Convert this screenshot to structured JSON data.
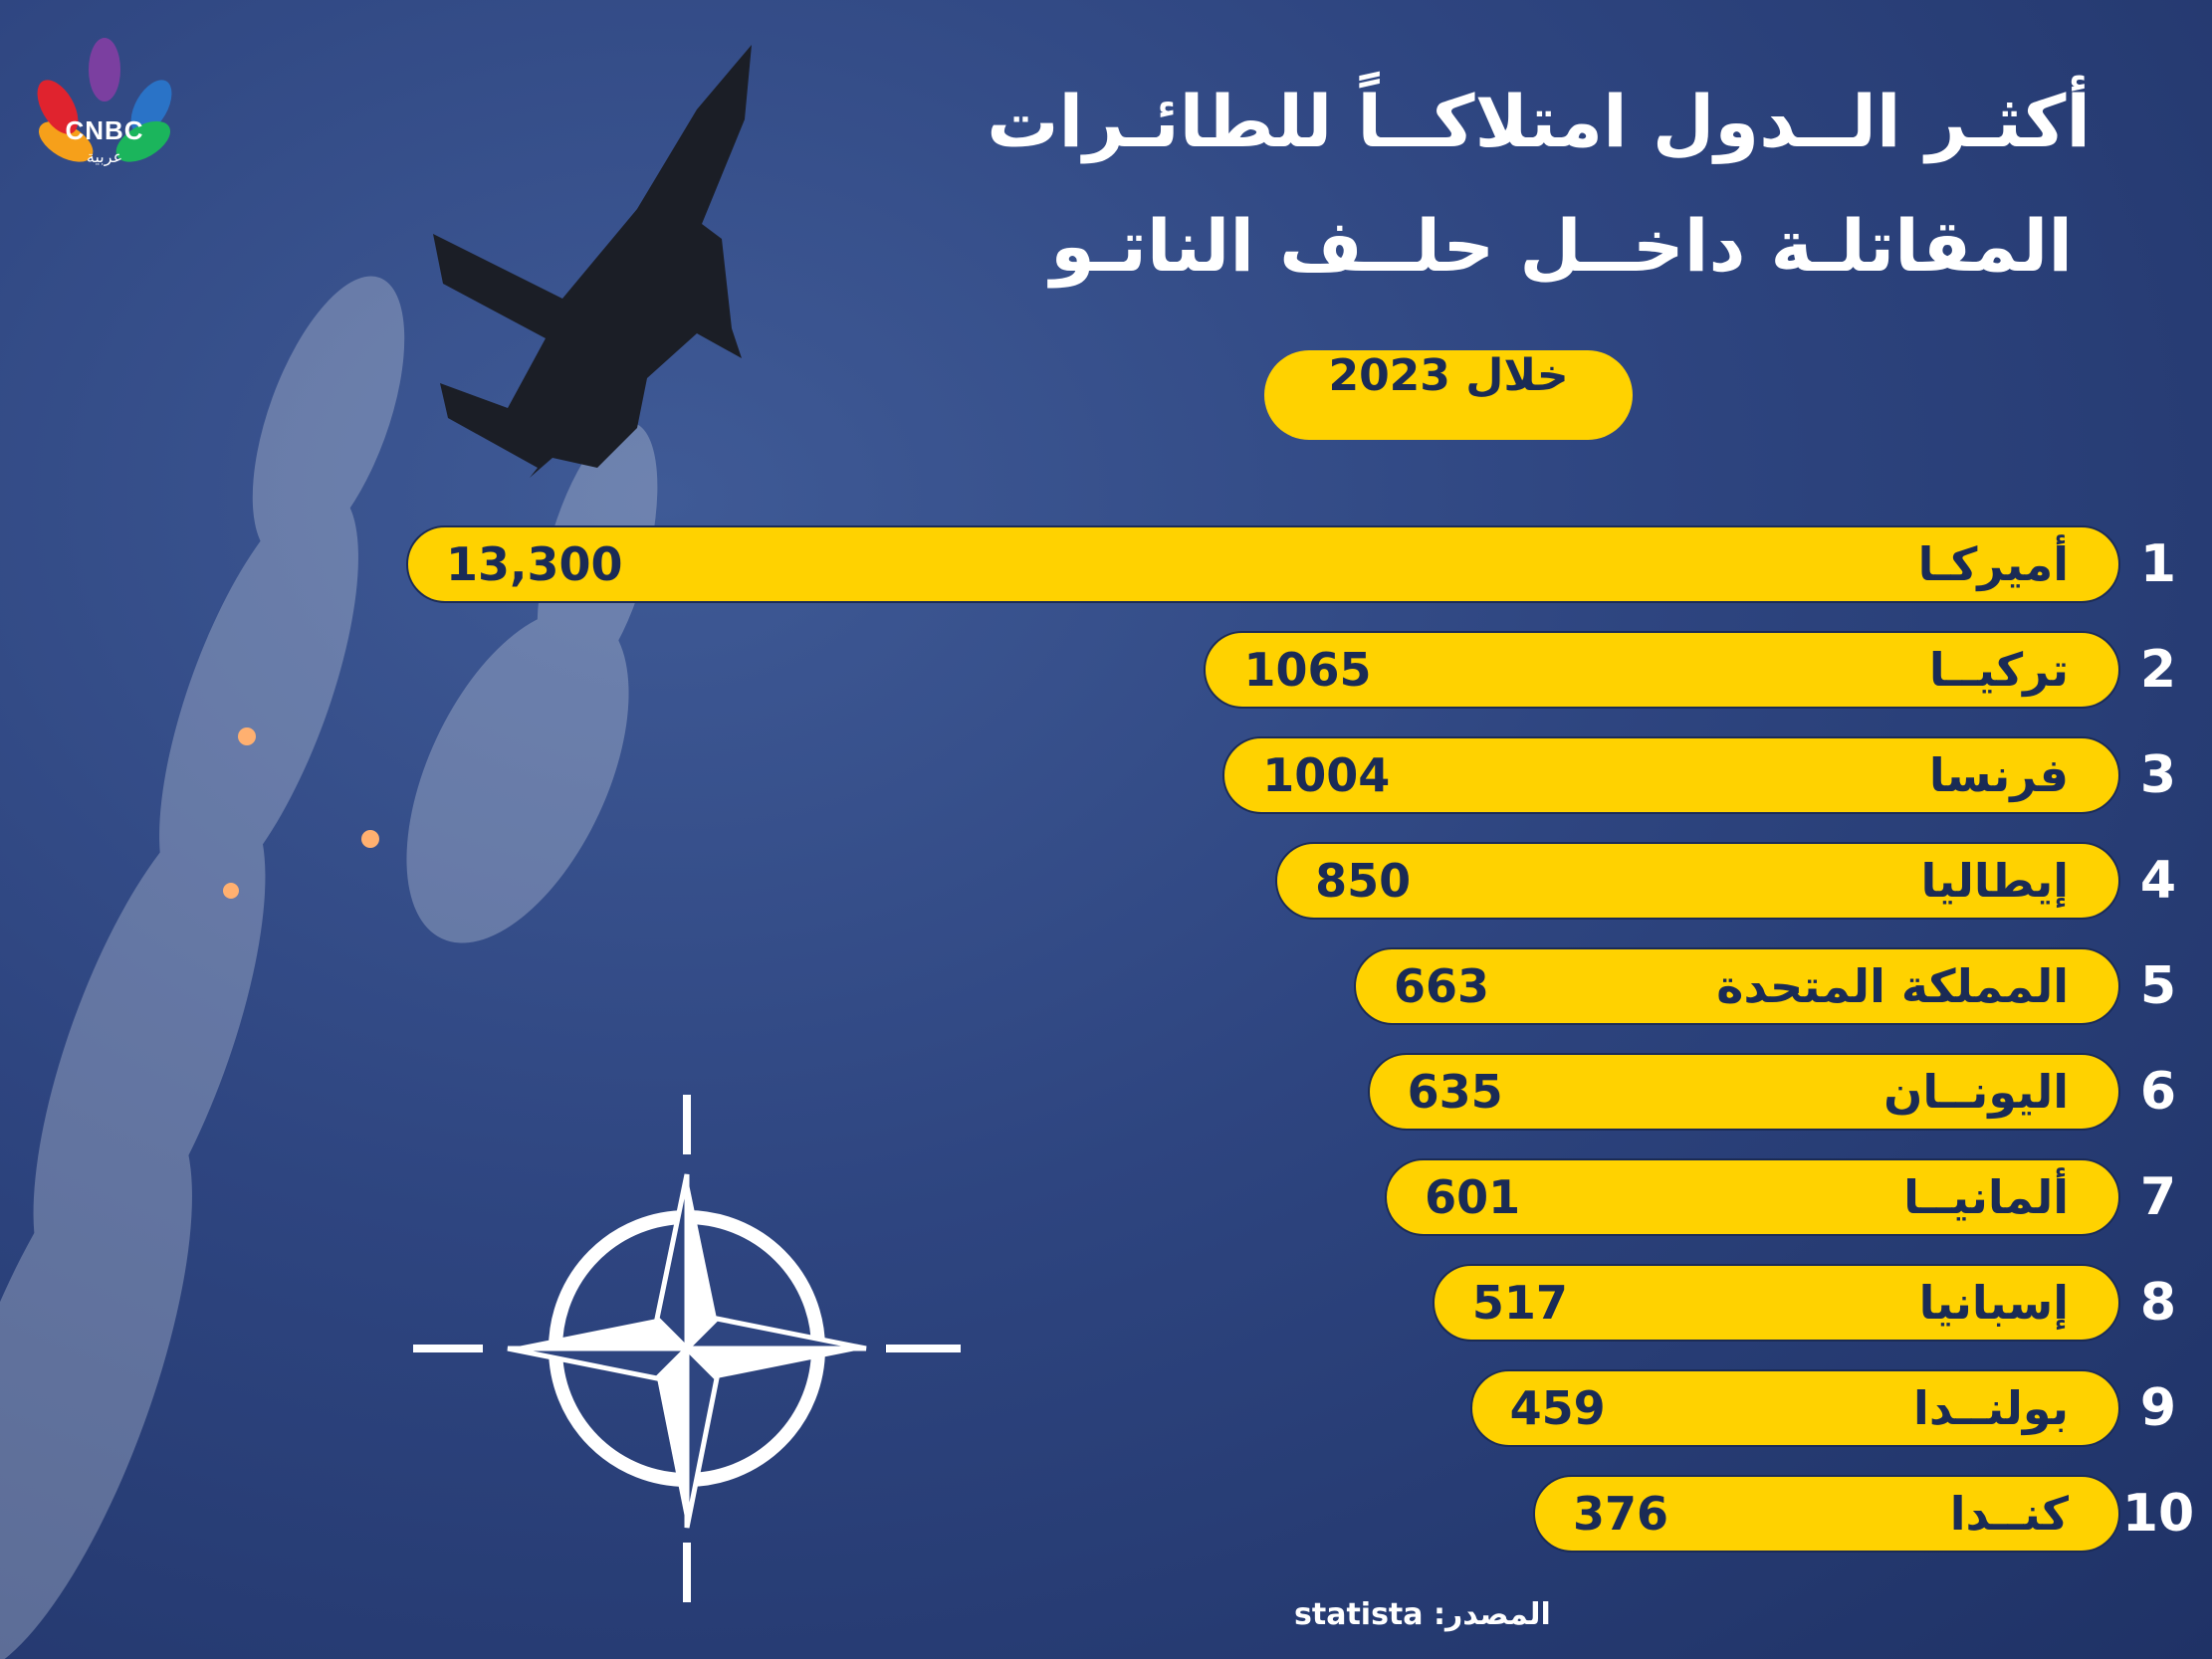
{
  "brand": {
    "logo_text": "CNBC",
    "logo_sub": "عربية"
  },
  "title": {
    "line1": "أكثـر الــدول امتلاكــاً للطائـرات",
    "line2": "المقاتلـة داخــل حلــف الناتـو"
  },
  "period": "خلال 2023",
  "source": "المصدر: statista",
  "colors": {
    "bar": "#ffd200",
    "text_dark": "#1a2b55",
    "background": "#2e4580"
  },
  "chart_data": {
    "type": "bar",
    "orientation": "horizontal",
    "title": "أكثـر الــدول امتلاكــاً للطائـرات المقاتلـة داخــل حلــف الناتـو",
    "ranks": [
      "1",
      "2",
      "3",
      "4",
      "5",
      "6",
      "7",
      "8",
      "9",
      "10"
    ],
    "categories": [
      "أميركـا",
      "تركيــا",
      "فرنسا",
      "إيطاليا",
      "المملكة المتحدة",
      "اليونــان",
      "ألمانيــا",
      "إسبانيا",
      "بولنــدا",
      "كنــدا"
    ],
    "value_labels": [
      "13,300",
      "1065",
      "1004",
      "850",
      "663",
      "635",
      "601",
      "517",
      "459",
      "376"
    ],
    "values": [
      13300,
      1065,
      1004,
      850,
      663,
      635,
      601,
      517,
      459,
      376
    ]
  }
}
